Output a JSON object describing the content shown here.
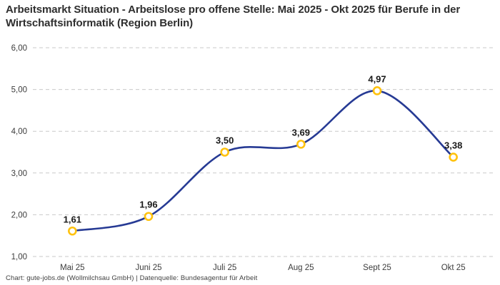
{
  "footer": {
    "credit": "Chart: gute-jobs.de (Wollmilchsau GmbH) | Datenquelle: Bundesagentur für Arbeit"
  },
  "chart_data": {
    "type": "line",
    "title": "Arbeitsmarkt Situation - Arbeitslose pro offene Stelle: Mai 2025 - Okt 2025 für Berufe in der Wirtschaftsinformatik (Region Berlin)",
    "categories": [
      "Mai 25",
      "Juni 25",
      "Juli 25",
      "Aug 25",
      "Sept 25",
      "Okt 25"
    ],
    "values": [
      1.61,
      1.96,
      3.5,
      3.69,
      4.97,
      3.38
    ],
    "point_labels": [
      "1,61",
      "1,96",
      "3,50",
      "3,69",
      "4,97",
      "3,38"
    ],
    "xlabel": "",
    "ylabel": "",
    "ylim": [
      1.0,
      6.0
    ],
    "yticks": [
      6,
      5,
      4,
      3,
      2,
      1
    ],
    "ytick_labels": [
      "6,00",
      "5,00",
      "4,00",
      "3,00",
      "2,00",
      "1,00"
    ],
    "grid": "horizontal-dashed",
    "legend": "none",
    "colors": {
      "line": "#263a94",
      "marker_ring": "#ffc20e",
      "marker_fill": "#ffffff",
      "gridline": "#c9c9c9",
      "axis_text": "#3c3c3c",
      "point_label_text": "#191919",
      "background": "#ffffff"
    }
  }
}
